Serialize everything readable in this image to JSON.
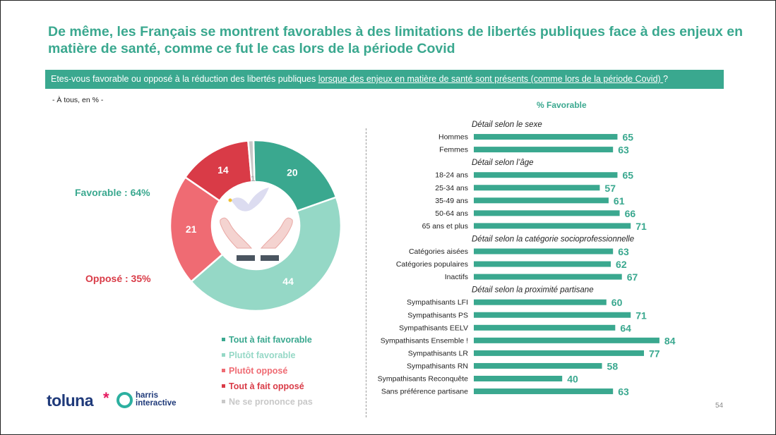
{
  "title": "De même, les Français se montrent favorables à des limitations de libertés publiques face à des enjeux en matière de santé, comme ce fut le cas lors de la période Covid",
  "question": {
    "prefix": "Etes-vous favorable ou opposé à la réduction des libertés publiques ",
    "underlined": "lorsque des enjeux en matière de santé sont présents (comme lors de la période Covid) ",
    "suffix": "?"
  },
  "base_note": "- À tous, en % -",
  "summary": {
    "favorable": "Favorable : 64%",
    "oppose": "Opposé : 35%"
  },
  "right_header": "% Favorable",
  "page_number": "54",
  "logos": {
    "toluna": "toluna",
    "star": "*",
    "harris_line1": "harris",
    "harris_line2": "interactive"
  },
  "colors": {
    "tout_favorable": "#3aa88f",
    "plutot_favorable": "#95d8c6",
    "plutot_oppose": "#ef6b73",
    "tout_oppose": "#d93b47",
    "nsp": "#c8c8c8",
    "bar": "#3aa88f",
    "title": "#3aa88f"
  },
  "chart_data": [
    {
      "type": "pie",
      "donut": true,
      "slices": [
        {
          "name": "Tout à fait favorable",
          "value": 20,
          "color": "#3aa88f"
        },
        {
          "name": "Plutôt favorable",
          "value": 44,
          "color": "#95d8c6"
        },
        {
          "name": "Plutôt opposé",
          "value": 21,
          "color": "#ef6b73"
        },
        {
          "name": "Tout à fait opposé",
          "value": 14,
          "color": "#d93b47"
        },
        {
          "name": "Ne se prononce pas",
          "value": 1,
          "color": "#c8c8c8"
        }
      ],
      "legend": [
        {
          "label": "Tout à fait favorable",
          "color": "#3aa88f"
        },
        {
          "label": "Plutôt favorable",
          "color": "#95d8c6"
        },
        {
          "label": "Plutôt opposé",
          "color": "#ef6b73"
        },
        {
          "label": "Tout à fait opposé",
          "color": "#d93b47"
        },
        {
          "label": "Ne se prononce pas",
          "color": "#c8c8c8"
        }
      ],
      "legend_position": "bottom"
    },
    {
      "type": "bar",
      "orientation": "horizontal",
      "xlim": [
        0,
        100
      ],
      "groups": [
        {
          "title": "Détail selon le sexe",
          "items": [
            {
              "label": "Hommes",
              "value": 65
            },
            {
              "label": "Femmes",
              "value": 63
            }
          ]
        },
        {
          "title": "Détail selon l’âge",
          "items": [
            {
              "label": "18-24 ans",
              "value": 65
            },
            {
              "label": "25-34 ans",
              "value": 57
            },
            {
              "label": "35-49 ans",
              "value": 61
            },
            {
              "label": "50-64 ans",
              "value": 66
            },
            {
              "label": "65 ans et plus",
              "value": 71
            }
          ]
        },
        {
          "title": "Détail selon la catégorie socioprofessionnelle",
          "items": [
            {
              "label": "Catégories aisées",
              "value": 63
            },
            {
              "label": "Catégories populaires",
              "value": 62
            },
            {
              "label": "Inactifs",
              "value": 67
            }
          ]
        },
        {
          "title": "Détail selon la proximité partisane",
          "items": [
            {
              "label": "Sympathisants LFI",
              "value": 60
            },
            {
              "label": "Sympathisants PS",
              "value": 71
            },
            {
              "label": "Sympathisants EELV",
              "value": 64
            },
            {
              "label": "Sympathisants Ensemble !",
              "value": 84
            },
            {
              "label": "Sympathisants LR",
              "value": 77
            },
            {
              "label": "Sympathisants RN",
              "value": 58
            },
            {
              "label": "Sympathisants Reconquête",
              "value": 40
            },
            {
              "label": "Sans préférence partisane",
              "value": 63
            }
          ]
        }
      ]
    }
  ]
}
